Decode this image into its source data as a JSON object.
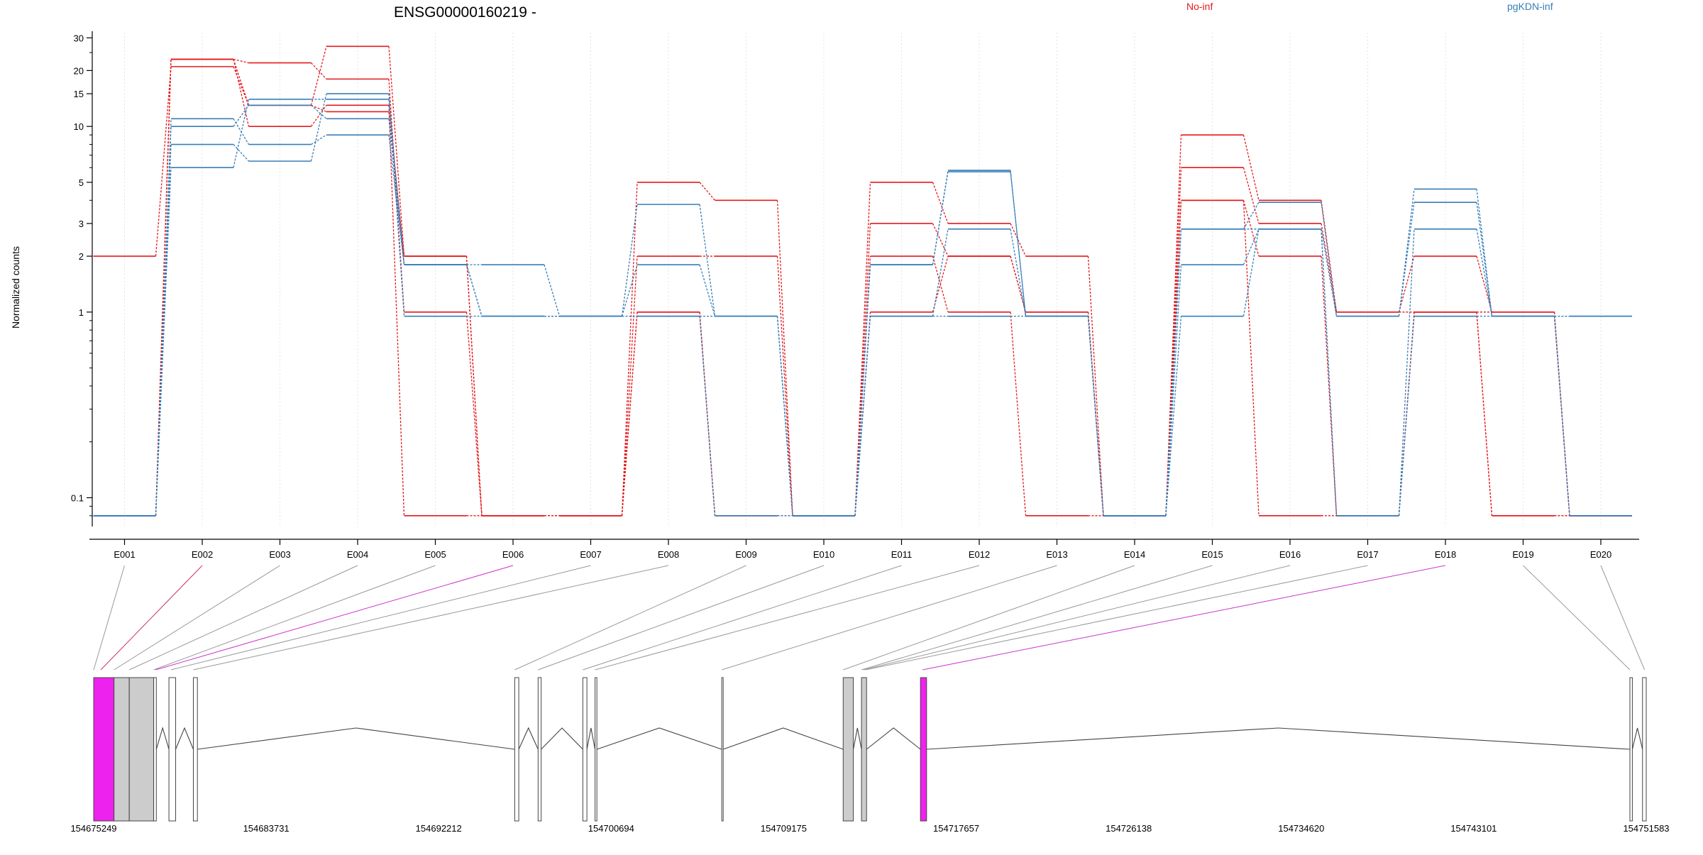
{
  "chart_data": {
    "type": "line",
    "title": "ENSG00000160219 -",
    "ylabel": "Normalized counts",
    "xlabel": "",
    "y_scale": "log",
    "y_ticks": [
      "0.1",
      "1",
      "2",
      "3",
      "5",
      "10",
      "15",
      "20",
      "30"
    ],
    "ylim": [
      0.07,
      32
    ],
    "grid": "vertical dotted lines at each exon",
    "legend": [
      {
        "name": "No-inf",
        "color": "#e41a1c"
      },
      {
        "name": "pgKDN-inf",
        "color": "#377eb8"
      }
    ],
    "categories": [
      "E001",
      "E002",
      "E003",
      "E004",
      "E005",
      "E006",
      "E007",
      "E008",
      "E009",
      "E010",
      "E011",
      "E012",
      "E013",
      "E014",
      "E015",
      "E016",
      "E017",
      "E018",
      "E019",
      "E020"
    ],
    "series": [
      {
        "group": "No-inf",
        "color": "#e41a1c",
        "values": [
          2,
          21,
          13,
          27,
          2,
          0.08,
          0.08,
          5,
          4,
          0.08,
          5,
          3,
          2,
          0.08,
          9,
          4,
          1,
          2,
          1,
          0.08
        ]
      },
      {
        "group": "No-inf",
        "color": "#e41a1c",
        "values": [
          0.08,
          23,
          22,
          18,
          1,
          0.08,
          0.08,
          2,
          2,
          0.08,
          3,
          2,
          1,
          0.08,
          6,
          3,
          1,
          1,
          1,
          0.08
        ]
      },
      {
        "group": "No-inf",
        "color": "#e41a1c",
        "values": [
          0.08,
          23,
          10,
          13,
          0.08,
          0.08,
          0.08,
          1,
          0.08,
          0.08,
          2,
          1,
          0.08,
          0.08,
          4,
          2,
          0.08,
          1,
          0.08,
          0.08
        ]
      },
      {
        "group": "No-inf",
        "color": "#e41a1c",
        "values": [
          0.08,
          23,
          13,
          12,
          2,
          0.08,
          0.08,
          1,
          0.08,
          0.08,
          1,
          2,
          1,
          0.08,
          4,
          0.08,
          0.08,
          1,
          0.08,
          0.08
        ]
      },
      {
        "group": "pgKDN-inf",
        "color": "#377eb8",
        "values": [
          0.08,
          11,
          8,
          9,
          1.8,
          1.8,
          0.95,
          3.8,
          0.95,
          0.08,
          1.8,
          5.8,
          0.95,
          0.08,
          2.8,
          3.9,
          0.95,
          3.9,
          0.95,
          0.95
        ]
      },
      {
        "group": "pgKDN-inf",
        "color": "#377eb8",
        "values": [
          0.08,
          10,
          13,
          11,
          1.8,
          0.95,
          0.95,
          1.8,
          0.95,
          0.08,
          1.8,
          5.7,
          0.95,
          0.08,
          1.8,
          2.8,
          0.95,
          4.6,
          0.95,
          0.95
        ]
      },
      {
        "group": "pgKDN-inf",
        "color": "#377eb8",
        "values": [
          0.08,
          8,
          6.5,
          15,
          0.95,
          0.95,
          0.95,
          0.95,
          0.95,
          0.08,
          0.95,
          2.8,
          0.95,
          0.08,
          2.8,
          2.8,
          0.08,
          2.8,
          0.95,
          0.08
        ]
      },
      {
        "group": "pgKDN-inf",
        "color": "#377eb8",
        "values": [
          0.08,
          6,
          14,
          14,
          1.8,
          0.95,
          0.95,
          0.95,
          0.08,
          0.08,
          0.95,
          0.95,
          0.95,
          0.08,
          0.95,
          2.8,
          0.08,
          0.95,
          0.95,
          0.08
        ]
      }
    ],
    "gene_model": {
      "start": 154675249,
      "end": 154751583,
      "axis_ticks": [
        "154675249",
        "154683731",
        "154692212",
        "154700694",
        "154709175",
        "154717657",
        "154726138",
        "154734620",
        "154743101",
        "154751583"
      ],
      "exons": [
        {
          "start": 154675249,
          "end": 154676250,
          "fill": "#ee22ee"
        },
        {
          "start": 154676250,
          "end": 154677000,
          "fill": "#cccccc"
        },
        {
          "start": 154677000,
          "end": 154678200,
          "fill": "#cccccc"
        },
        {
          "start": 154678200,
          "end": 154678330,
          "fill": "#ffffff"
        },
        {
          "start": 154678950,
          "end": 154679280,
          "fill": "#ffffff"
        },
        {
          "start": 154680150,
          "end": 154680350,
          "fill": "#ffffff"
        },
        {
          "start": 154695950,
          "end": 154696150,
          "fill": "#ffffff"
        },
        {
          "start": 154697100,
          "end": 154697250,
          "fill": "#ffffff"
        },
        {
          "start": 154699300,
          "end": 154699500,
          "fill": "#ffffff"
        },
        {
          "start": 154699900,
          "end": 154699990,
          "fill": "#ffffff"
        },
        {
          "start": 154706130,
          "end": 154706200,
          "fill": "#ffffff"
        },
        {
          "start": 154712100,
          "end": 154712600,
          "fill": "#cccccc"
        },
        {
          "start": 154713000,
          "end": 154713250,
          "fill": "#cccccc"
        },
        {
          "start": 154715900,
          "end": 154716200,
          "fill": "#ee22ee"
        },
        {
          "start": 154750780,
          "end": 154750900,
          "fill": "#ffffff"
        },
        {
          "start": 154751400,
          "end": 154751583,
          "fill": "#ffffff"
        }
      ],
      "exon_links": [
        {
          "target": 154675249,
          "color": "#999999"
        },
        {
          "target": 154675600,
          "color": "#cc3366"
        },
        {
          "target": 154676250,
          "color": "#999999"
        },
        {
          "target": 154677000,
          "color": "#999999"
        },
        {
          "target": 154678200,
          "color": "#999999"
        },
        {
          "target": 154678300,
          "color": "#cc33cc"
        },
        {
          "target": 154679050,
          "color": "#999999"
        },
        {
          "target": 154680150,
          "color": "#999999"
        },
        {
          "target": 154695950,
          "color": "#999999"
        },
        {
          "target": 154697100,
          "color": "#999999"
        },
        {
          "target": 154699300,
          "color": "#999999"
        },
        {
          "target": 154699900,
          "color": "#999999"
        },
        {
          "target": 154706130,
          "color": "#999999"
        },
        {
          "target": 154712100,
          "color": "#999999"
        },
        {
          "target": 154713000,
          "color": "#999999"
        },
        {
          "target": 154713100,
          "color": "#999999"
        },
        {
          "target": 154713200,
          "color": "#999999"
        },
        {
          "target": 154716000,
          "color": "#cc33cc"
        },
        {
          "target": 154750780,
          "color": "#999999"
        },
        {
          "target": 154751500,
          "color": "#999999"
        }
      ]
    }
  }
}
